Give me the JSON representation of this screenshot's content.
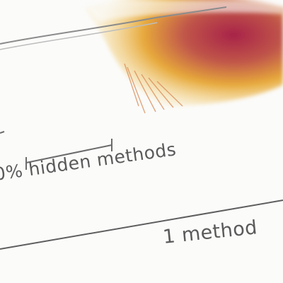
{
  "labels": {
    "hidden_methods": "0% hidden methods",
    "one_method": "1 method"
  },
  "colors": {
    "background": "#fbfbfa",
    "feather_orange": "#e7a93b",
    "feather_magenta": "#a8234a",
    "line_gray": "#6b6b6b"
  },
  "icons": [
    "feather-image",
    "scale-bracket"
  ]
}
